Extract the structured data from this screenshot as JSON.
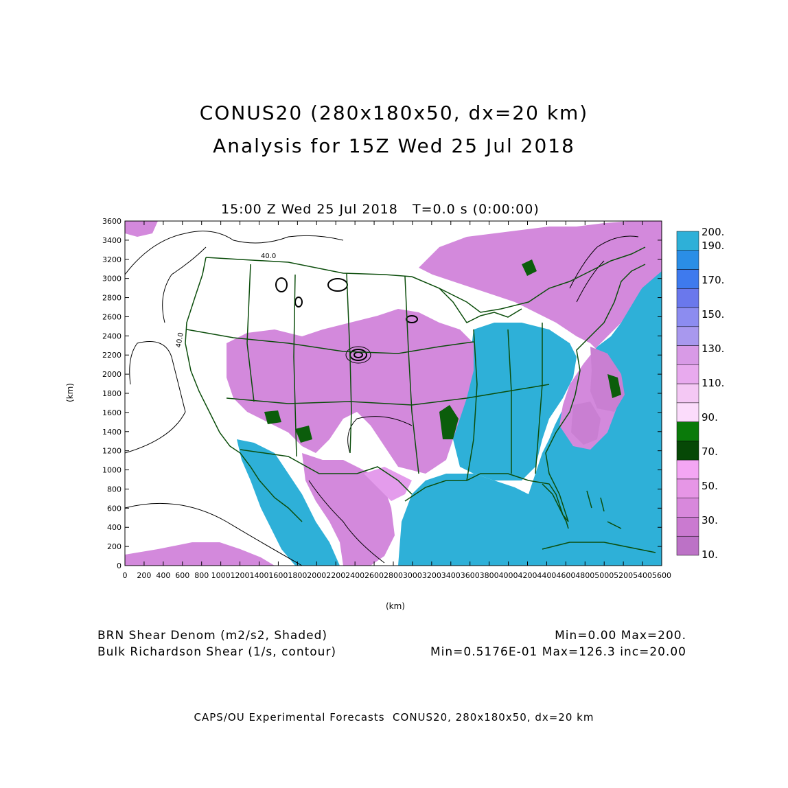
{
  "header": {
    "title_line1": "CONUS20 (280x180x50, dx=20 km)",
    "title_line2": "Analysis for 15Z Wed 25 Jul 2018",
    "subtitle": "15:00 Z Wed 25 Jul 2018   T=0.0 s (0:00:00)"
  },
  "axes": {
    "x_label": "(km)",
    "y_label": "(km)",
    "x_ticks": [
      "0",
      "200",
      "400",
      "600",
      "800",
      "1000",
      "1200",
      "1400",
      "1600",
      "1800",
      "2000",
      "2200",
      "2400",
      "2600",
      "2800",
      "3000",
      "3200",
      "3400",
      "3600",
      "3800",
      "4000",
      "4200",
      "4400",
      "4600",
      "4800",
      "5000",
      "5200",
      "5400",
      "5600"
    ],
    "y_ticks": [
      "0",
      "200",
      "400",
      "600",
      "800",
      "1000",
      "1200",
      "1400",
      "1600",
      "1800",
      "2000",
      "2200",
      "2400",
      "2600",
      "2800",
      "3000",
      "3200",
      "3400",
      "3600"
    ],
    "x_range": [
      0,
      5600
    ],
    "y_range": [
      0,
      3600
    ]
  },
  "colorbar": {
    "labels": [
      "200.",
      "190.",
      "170.",
      "150.",
      "130.",
      "110.",
      "90.",
      "70.",
      "50.",
      "30.",
      "10."
    ],
    "colors": [
      "#2eb0d8",
      "#2a8ee6",
      "#3e7aee",
      "#6a78ec",
      "#8c8cf0",
      "#a898ee",
      "#d89ae6",
      "#e8aaee",
      "#f4c8f4",
      "#fbdcfb",
      "#0a7a0a",
      "#064806",
      "#f4a6f4",
      "#e696e6",
      "#d888dc",
      "#ca7ad0",
      "#bc72c6"
    ]
  },
  "contour_labels": [
    "40.0",
    "40.0"
  ],
  "colors": {
    "ocean": "#2eb0d8",
    "magenta_light": "#e098ea",
    "magenta": "#c97fd2",
    "green_dark": "#0b5d0b",
    "border": "#0b4d0b"
  },
  "footer": {
    "shaded_label": "BRN Shear Denom (m2/s2, Shaded)",
    "shaded_stats": "Min=0.00 Max=200.",
    "contour_label": "Bulk Richardson Shear (1/s, contour)",
    "contour_stats": "Min=0.5176E-01 Max=126.3 inc=20.00",
    "credit": "CAPS/OU Experimental Forecasts  CONUS20, 280x180x50, dx=20 km"
  }
}
